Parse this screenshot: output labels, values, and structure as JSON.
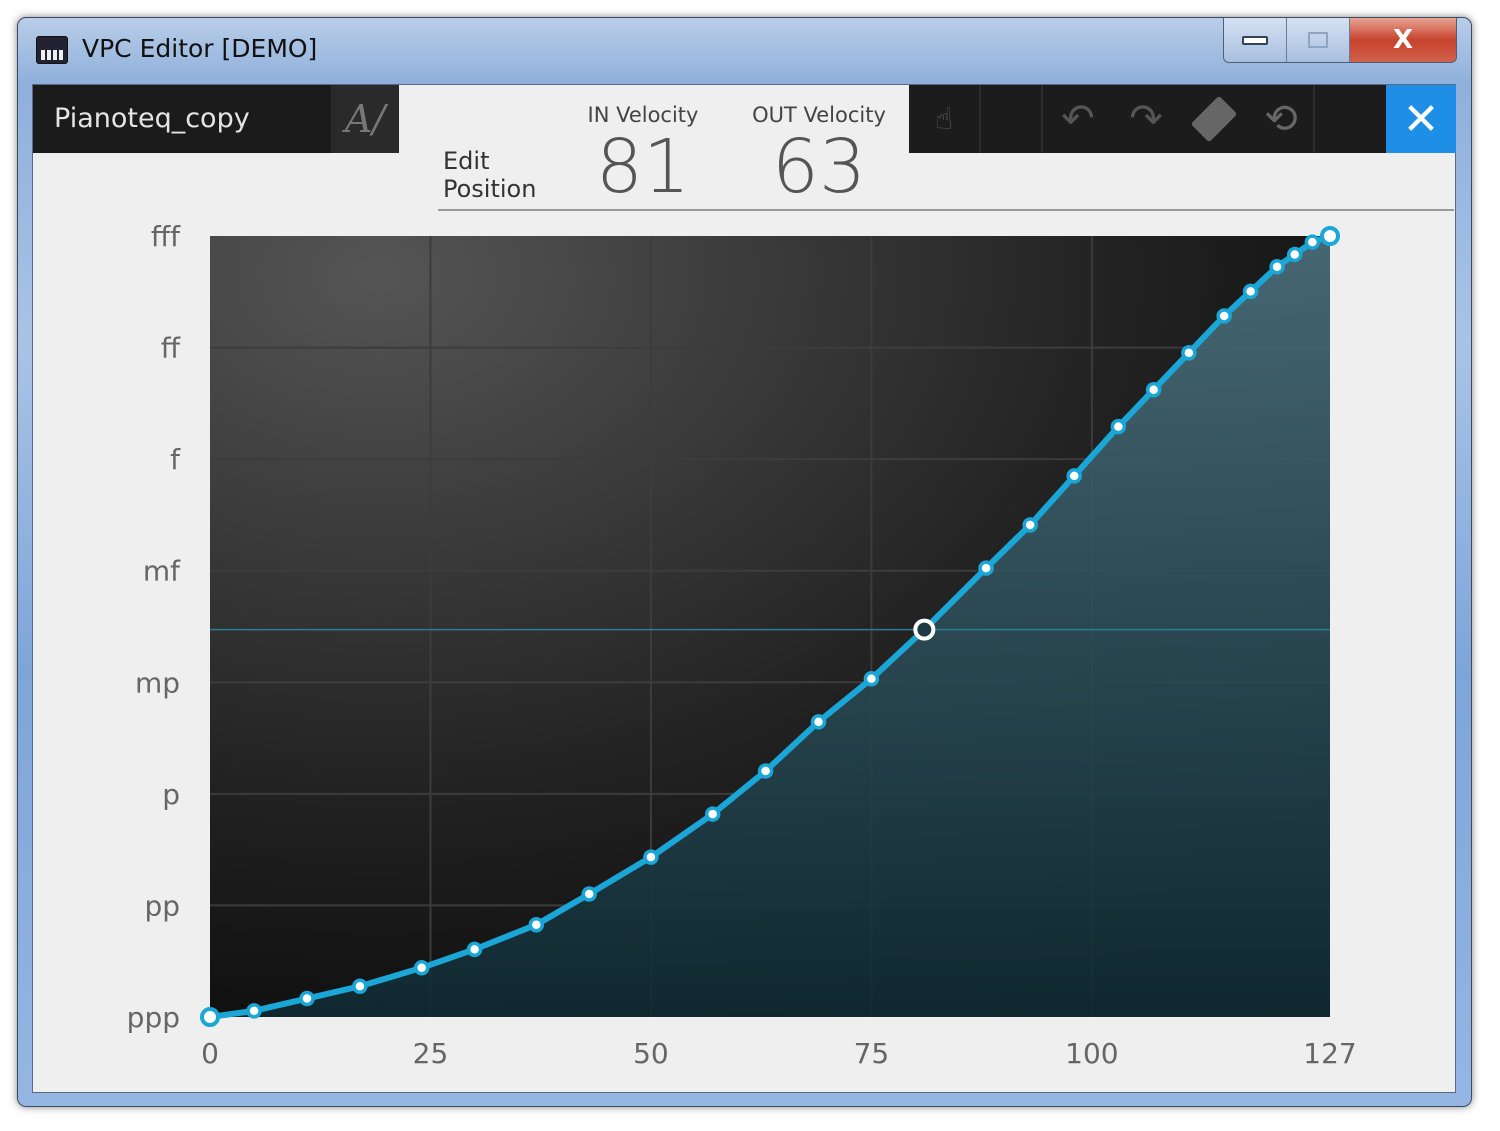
{
  "window": {
    "title": "VPC Editor [DEMO]",
    "minimize_icon": "minimize-icon",
    "maximize_icon": "maximize-icon",
    "close_label": "X"
  },
  "header": {
    "preset_name": "Pianoteq_copy",
    "rename_icon": "rename-icon",
    "edit_position_line1": "Edit",
    "edit_position_line2": "Position",
    "in_velocity_label": "IN Velocity",
    "in_velocity": "81",
    "out_velocity_label": "OUT Velocity",
    "out_velocity": "63"
  },
  "toolbar": {
    "icons": [
      "keyboard-touch-icon",
      "blank",
      "undo-icon",
      "redo-icon",
      "eraser-icon",
      "reset-icon",
      "blank"
    ],
    "close_label": "✕",
    "accent": "#1e8ee6"
  },
  "chart_data": {
    "type": "line",
    "title": "",
    "xlabel": "",
    "ylabel": "",
    "xlim": [
      0,
      127
    ],
    "ylim": [
      0,
      127
    ],
    "x_ticks": [
      "0",
      "25",
      "50",
      "75",
      "100",
      "127"
    ],
    "x_tick_values": [
      0,
      25,
      50,
      75,
      100,
      127
    ],
    "y_ticks": [
      "ppp",
      "pp",
      "p",
      "mp",
      "mf",
      "f",
      "ff",
      "fff"
    ],
    "grid": true,
    "line_color": "#1aa6d6",
    "selected_point": {
      "x": 81,
      "y": 63
    },
    "points": [
      [
        0,
        0
      ],
      [
        5,
        1
      ],
      [
        11,
        3
      ],
      [
        17,
        5
      ],
      [
        24,
        8
      ],
      [
        30,
        11
      ],
      [
        37,
        15
      ],
      [
        43,
        20
      ],
      [
        50,
        26
      ],
      [
        57,
        33
      ],
      [
        63,
        40
      ],
      [
        69,
        48
      ],
      [
        75,
        55
      ],
      [
        81,
        63
      ],
      [
        88,
        73
      ],
      [
        93,
        80
      ],
      [
        98,
        88
      ],
      [
        103,
        96
      ],
      [
        107,
        102
      ],
      [
        111,
        108
      ],
      [
        115,
        114
      ],
      [
        118,
        118
      ],
      [
        121,
        122
      ],
      [
        123,
        124
      ],
      [
        125,
        126
      ],
      [
        127,
        127
      ]
    ]
  }
}
